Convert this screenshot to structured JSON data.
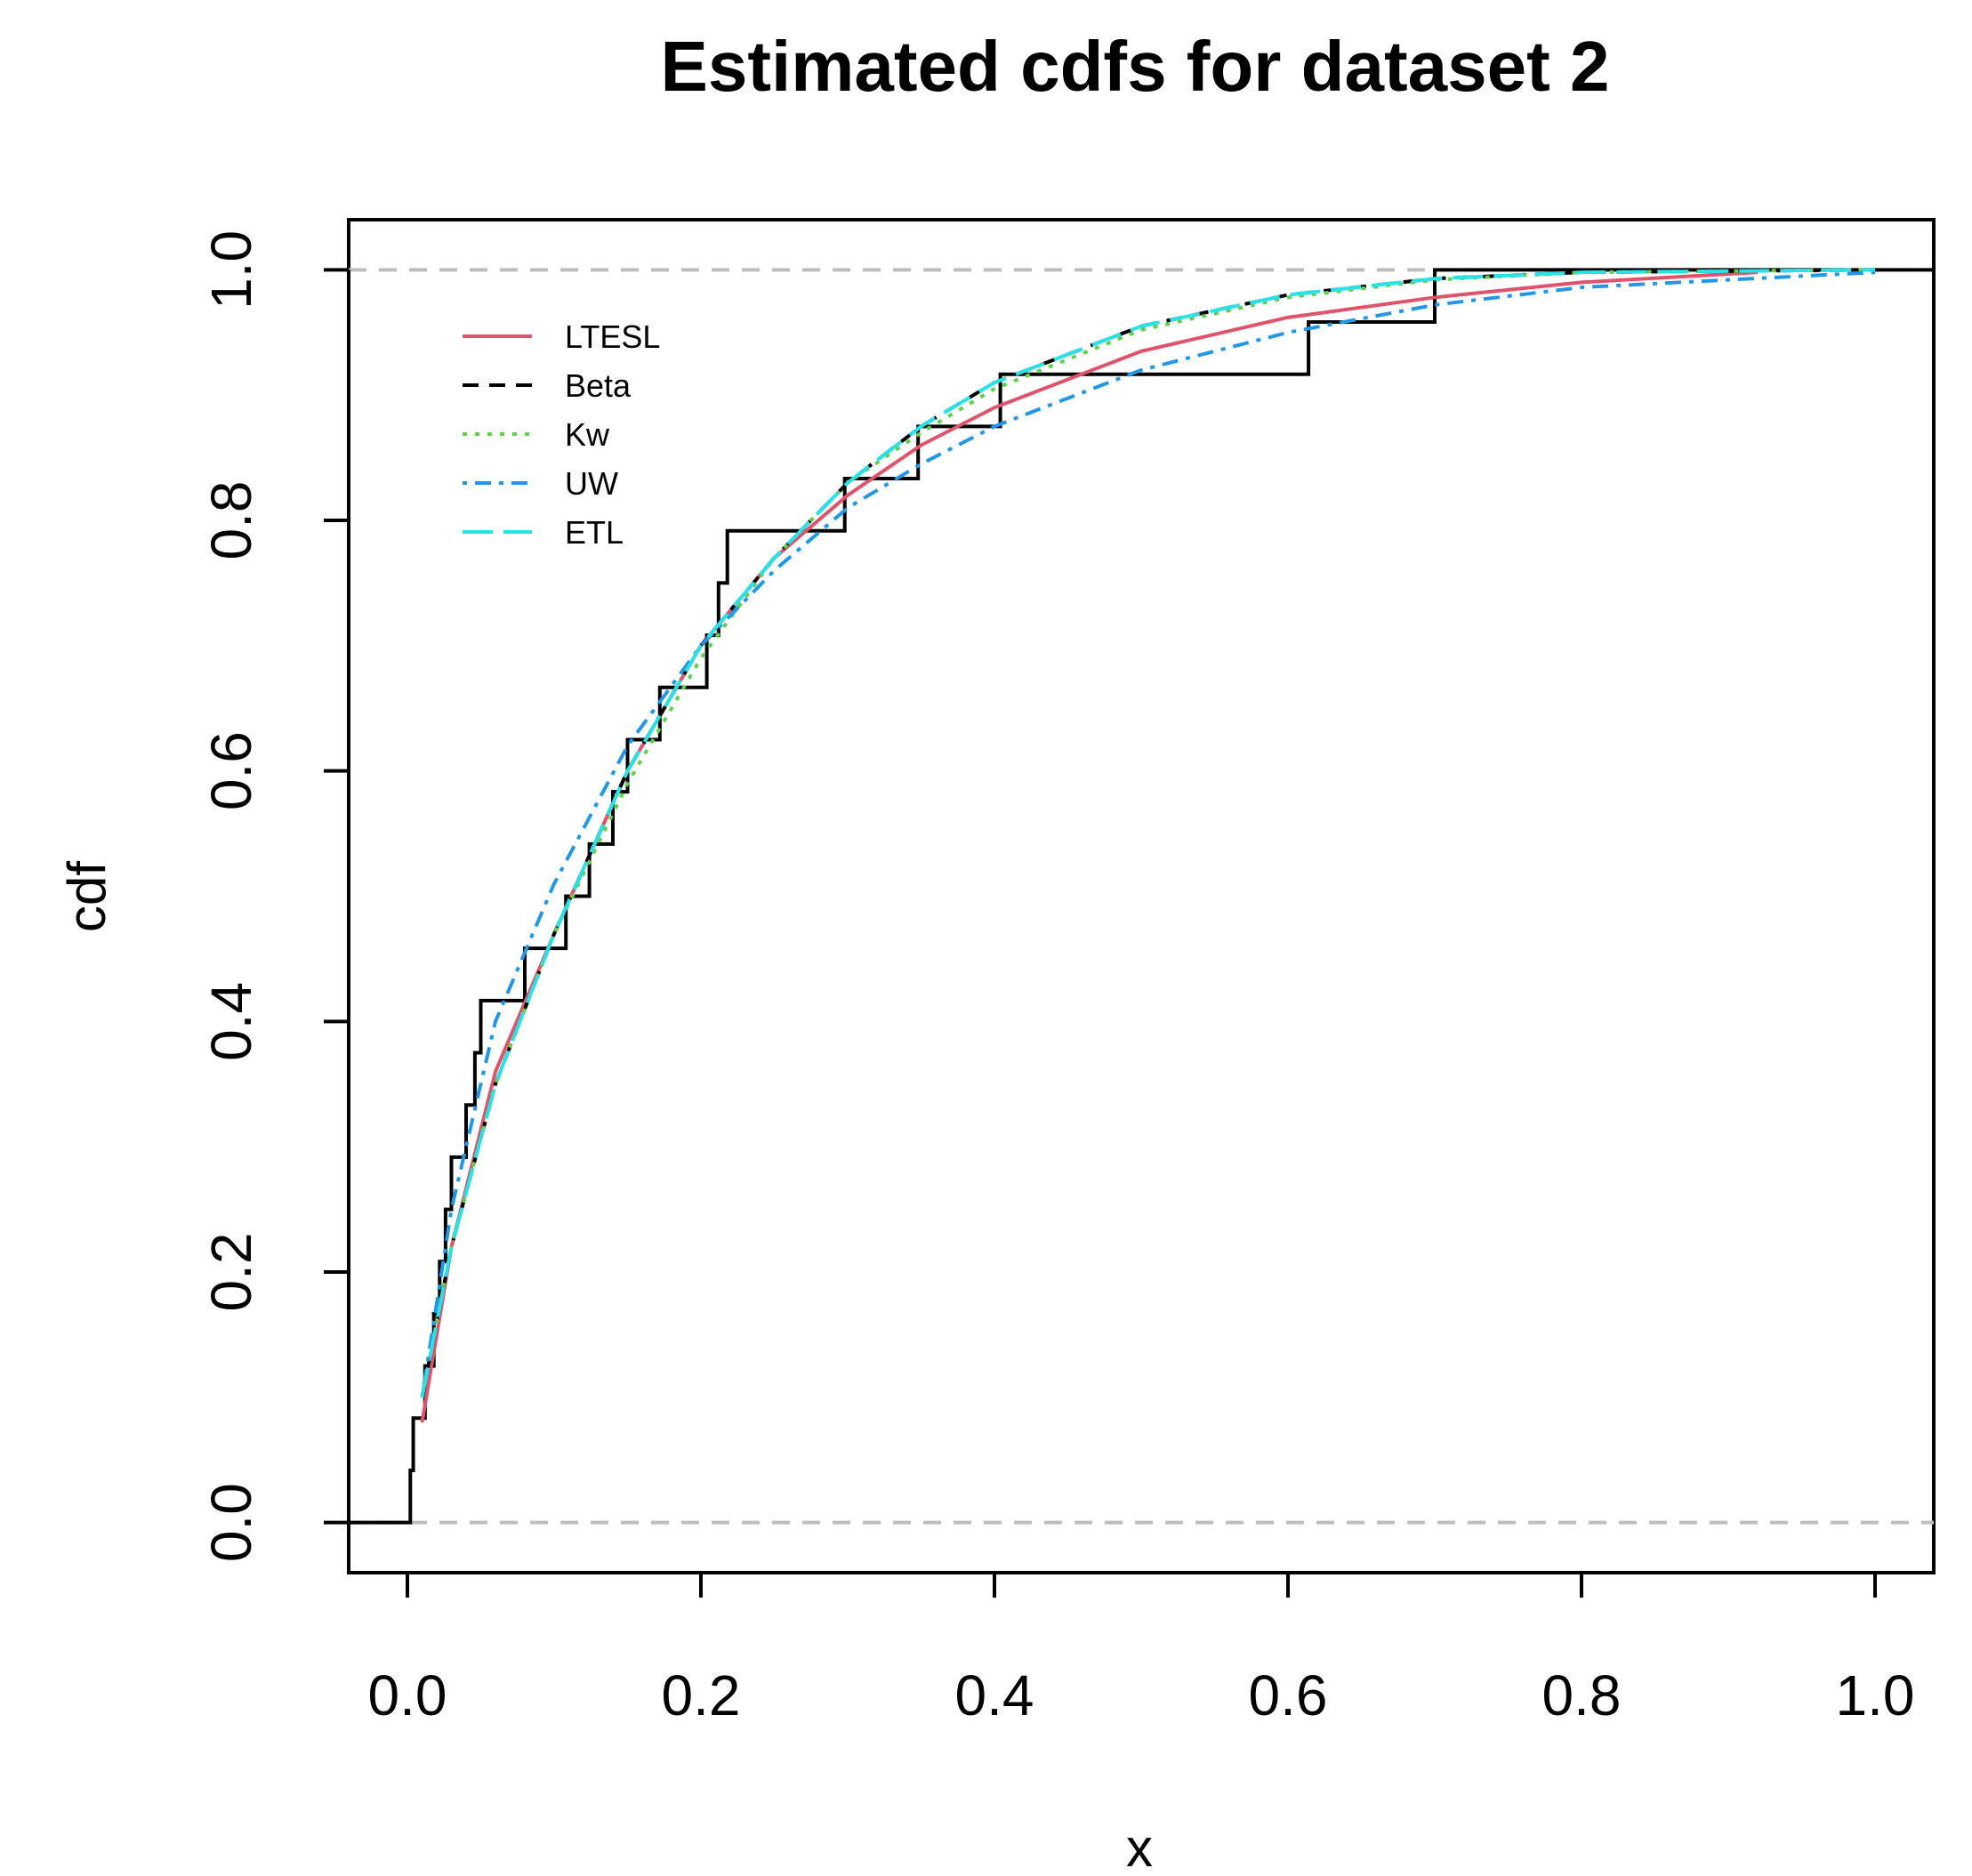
{
  "chart_data": {
    "type": "line",
    "title": "Estimated cdfs for dataset 2",
    "xlabel": "x",
    "ylabel": "cdf",
    "xlim": [
      -0.04,
      1.04
    ],
    "ylim": [
      -0.04,
      1.04
    ],
    "xticks": [
      "0.0",
      "0.2",
      "0.4",
      "0.6",
      "0.8",
      "1.0"
    ],
    "yticks": [
      "0.0",
      "0.2",
      "0.4",
      "0.6",
      "0.8",
      "1.0"
    ],
    "reference_lines": [
      0,
      1
    ],
    "legend_position": "top-left",
    "ecdf": {
      "name": "empirical cdf",
      "color": "#000000",
      "jumps": [
        0.002,
        0.004,
        0.012,
        0.018,
        0.022,
        0.026,
        0.03,
        0.04,
        0.046,
        0.05,
        0.08,
        0.108,
        0.124,
        0.14,
        0.15,
        0.172,
        0.204,
        0.212,
        0.218,
        0.298,
        0.348,
        0.404,
        0.614,
        0.7
      ]
    },
    "series": [
      {
        "name": "LTESL",
        "color": "#DF536B",
        "style": "solid",
        "x": [
          0.01,
          0.03,
          0.06,
          0.1,
          0.15,
          0.2,
          0.25,
          0.3,
          0.35,
          0.4,
          0.5,
          0.6,
          0.7,
          0.8,
          0.92
        ],
        "y": [
          0.08,
          0.22,
          0.36,
          0.47,
          0.6,
          0.7,
          0.77,
          0.82,
          0.86,
          0.89,
          0.935,
          0.962,
          0.978,
          0.99,
          0.998
        ]
      },
      {
        "name": "Beta",
        "color": "#000000",
        "style": "dashed",
        "x": [
          0.01,
          0.03,
          0.06,
          0.1,
          0.15,
          0.2,
          0.25,
          0.3,
          0.35,
          0.4,
          0.5,
          0.6,
          0.7,
          0.8,
          1.0
        ],
        "y": [
          0.1,
          0.22,
          0.35,
          0.47,
          0.6,
          0.7,
          0.77,
          0.83,
          0.875,
          0.91,
          0.955,
          0.98,
          0.993,
          0.998,
          1.0
        ]
      },
      {
        "name": "Kw",
        "color": "#61D04F",
        "style": "dotted",
        "x": [
          0.01,
          0.03,
          0.06,
          0.1,
          0.15,
          0.2,
          0.25,
          0.3,
          0.35,
          0.4,
          0.5,
          0.6,
          0.7,
          0.8,
          1.0
        ],
        "y": [
          0.1,
          0.22,
          0.35,
          0.47,
          0.59,
          0.69,
          0.77,
          0.83,
          0.87,
          0.905,
          0.952,
          0.978,
          0.992,
          0.998,
          1.0
        ]
      },
      {
        "name": "UW",
        "color": "#2297E6",
        "style": "dotdash",
        "x": [
          0.01,
          0.03,
          0.06,
          0.1,
          0.15,
          0.2,
          0.25,
          0.3,
          0.35,
          0.4,
          0.5,
          0.6,
          0.7,
          0.8,
          1.0
        ],
        "y": [
          0.1,
          0.25,
          0.4,
          0.51,
          0.62,
          0.7,
          0.76,
          0.81,
          0.845,
          0.875,
          0.92,
          0.95,
          0.972,
          0.986,
          0.998
        ]
      },
      {
        "name": "ETL",
        "color": "#28E2E5",
        "style": "longdash",
        "x": [
          0.01,
          0.03,
          0.06,
          0.1,
          0.15,
          0.2,
          0.25,
          0.3,
          0.35,
          0.4,
          0.5,
          0.6,
          0.7,
          0.8,
          1.0
        ],
        "y": [
          0.1,
          0.22,
          0.35,
          0.47,
          0.6,
          0.7,
          0.77,
          0.83,
          0.875,
          0.91,
          0.955,
          0.98,
          0.993,
          0.998,
          1.0
        ]
      }
    ]
  }
}
